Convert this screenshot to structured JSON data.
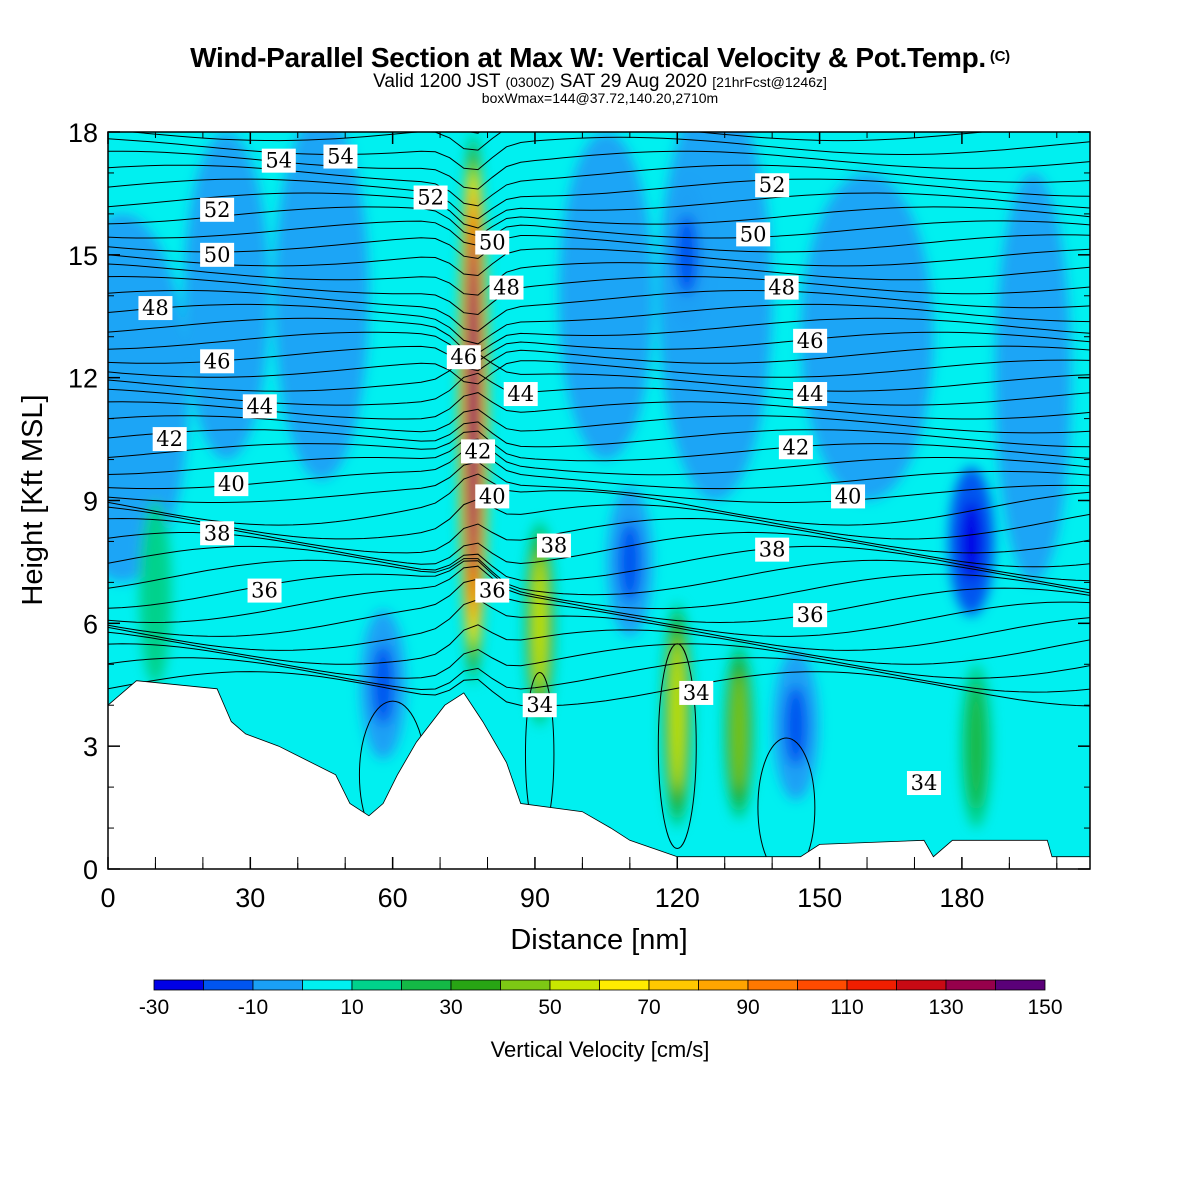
{
  "header": {
    "title": "Wind-Parallel Section at Max W: Vertical Velocity & Pot.Temp.",
    "title_mark": "(C)",
    "valid_prefix": "Valid 1200 JST",
    "valid_utc": "(0300Z)",
    "valid_date": "SAT 29 Aug 2020",
    "valid_fcst": "[21hrFcst@1246z]",
    "box_info": "boxWmax=144@37.72,140.20,2710m"
  },
  "chart_data": {
    "type": "heatmap",
    "xlabel": "Distance [nm]",
    "ylabel": "Height [Kft MSL]",
    "xlim": [
      0,
      207
    ],
    "ylim": [
      0,
      18
    ],
    "x_ticks": [
      0,
      30,
      60,
      90,
      120,
      150,
      180
    ],
    "y_ticks": [
      0,
      3,
      6,
      9,
      12,
      15,
      18
    ],
    "colorbar": {
      "title": "Vertical Velocity [cm/s]",
      "labels": [
        "-30",
        "-10",
        "10",
        "30",
        "50",
        "70",
        "90",
        "110",
        "130",
        "150"
      ],
      "levels": [
        -30,
        -20,
        -10,
        0,
        10,
        20,
        30,
        40,
        50,
        60,
        70,
        80,
        90,
        100,
        110,
        120,
        130,
        140,
        150
      ],
      "colors": [
        "#0000e6",
        "#0055f0",
        "#1aa0f5",
        "#00f0f0",
        "#00d28c",
        "#14b946",
        "#28a514",
        "#7dc814",
        "#c8e600",
        "#ffeb00",
        "#ffc800",
        "#ffa500",
        "#ff7800",
        "#ff4b00",
        "#f01e00",
        "#c80a14",
        "#96004b",
        "#5a0078"
      ]
    },
    "theta_contour_labels": [
      {
        "text": "54",
        "x": 36,
        "y": 17.3
      },
      {
        "text": "54",
        "x": 49,
        "y": 17.4
      },
      {
        "text": "52",
        "x": 23,
        "y": 16.1
      },
      {
        "text": "52",
        "x": 68,
        "y": 16.4
      },
      {
        "text": "52",
        "x": 140,
        "y": 16.7
      },
      {
        "text": "50",
        "x": 23,
        "y": 15.0
      },
      {
        "text": "50",
        "x": 81,
        "y": 15.3
      },
      {
        "text": "50",
        "x": 136,
        "y": 15.5
      },
      {
        "text": "48",
        "x": 10,
        "y": 13.7
      },
      {
        "text": "48",
        "x": 84,
        "y": 14.2
      },
      {
        "text": "48",
        "x": 142,
        "y": 14.2
      },
      {
        "text": "46",
        "x": 23,
        "y": 12.4
      },
      {
        "text": "46",
        "x": 75,
        "y": 12.5
      },
      {
        "text": "46",
        "x": 148,
        "y": 12.9
      },
      {
        "text": "44",
        "x": 32,
        "y": 11.3
      },
      {
        "text": "44",
        "x": 87,
        "y": 11.6
      },
      {
        "text": "44",
        "x": 148,
        "y": 11.6
      },
      {
        "text": "42",
        "x": 13,
        "y": 10.5
      },
      {
        "text": "42",
        "x": 78,
        "y": 10.2
      },
      {
        "text": "42",
        "x": 145,
        "y": 10.3
      },
      {
        "text": "40",
        "x": 26,
        "y": 9.4
      },
      {
        "text": "40",
        "x": 81,
        "y": 9.1
      },
      {
        "text": "40",
        "x": 156,
        "y": 9.1
      },
      {
        "text": "38",
        "x": 23,
        "y": 8.2
      },
      {
        "text": "38",
        "x": 94,
        "y": 7.9
      },
      {
        "text": "38",
        "x": 140,
        "y": 7.8
      },
      {
        "text": "36",
        "x": 33,
        "y": 6.8
      },
      {
        "text": "36",
        "x": 81,
        "y": 6.8
      },
      {
        "text": "36",
        "x": 148,
        "y": 6.2
      },
      {
        "text": "34",
        "x": 91,
        "y": 4.0
      },
      {
        "text": "34",
        "x": 124,
        "y": 4.3
      },
      {
        "text": "34",
        "x": 172,
        "y": 2.1
      }
    ],
    "terrain_kft": [
      [
        0,
        4.0
      ],
      [
        3,
        4.3
      ],
      [
        6,
        4.6
      ],
      [
        23,
        4.4
      ],
      [
        26,
        3.6
      ],
      [
        29,
        3.3
      ],
      [
        36,
        3.0
      ],
      [
        48,
        2.3
      ],
      [
        51,
        1.6
      ],
      [
        55,
        1.3
      ],
      [
        58,
        1.6
      ],
      [
        61,
        2.3
      ],
      [
        65,
        3.1
      ],
      [
        71,
        4.0
      ],
      [
        75,
        4.3
      ],
      [
        79,
        3.6
      ],
      [
        84,
        2.6
      ],
      [
        87,
        1.6
      ],
      [
        100,
        1.4
      ],
      [
        106,
        1.0
      ],
      [
        110,
        0.7
      ],
      [
        120,
        0.3
      ],
      [
        146,
        0.3
      ],
      [
        150,
        0.6
      ],
      [
        172,
        0.7
      ],
      [
        174,
        0.3
      ],
      [
        178,
        0.7
      ],
      [
        198,
        0.7
      ],
      [
        199,
        0.3
      ],
      [
        207,
        0.3
      ]
    ],
    "updrafts": [
      {
        "x": 77,
        "z_bottom": 4.5,
        "z_top": 18,
        "w_max": 144
      },
      {
        "x": 91,
        "z_bottom": 3.5,
        "z_top": 8.5,
        "w_max": 60
      },
      {
        "x": 120,
        "z_bottom": 1.0,
        "z_top": 6.5,
        "w_max": 55
      },
      {
        "x": 133,
        "z_bottom": 1.2,
        "z_top": 5.5,
        "w_max": 50
      },
      {
        "x": 183,
        "z_bottom": 1.0,
        "z_top": 5.0,
        "w_max": 30
      },
      {
        "x": 10,
        "z_bottom": 4.5,
        "z_top": 9.0,
        "w_max": 18
      }
    ],
    "downdrafts": [
      {
        "x": 58,
        "z": 4.5,
        "w_min": -15
      },
      {
        "x": 110,
        "z": 7.5,
        "w_min": -18
      },
      {
        "x": 145,
        "z": 3.5,
        "w_min": -15
      },
      {
        "x": 182,
        "z": 8.0,
        "w_min": -28
      },
      {
        "x": 122,
        "z": 15.0,
        "w_min": -12
      }
    ]
  }
}
